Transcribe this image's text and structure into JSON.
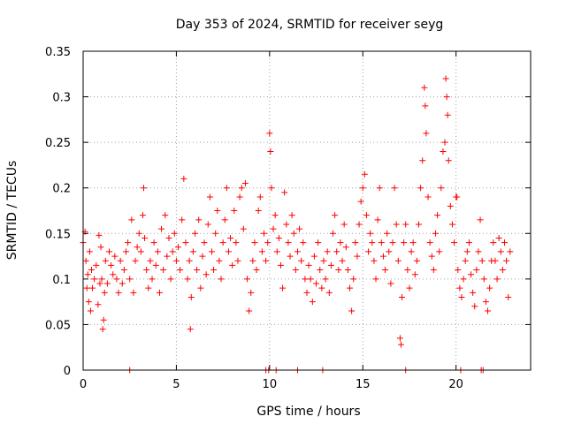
{
  "chart_data": {
    "type": "scatter",
    "title": "Day 353 of 2024, SRMTID for receiver seyg",
    "xlabel": "GPS time / hours",
    "ylabel": "SRMTID / TECUs",
    "xlim": [
      0,
      24
    ],
    "ylim": [
      0,
      0.35
    ],
    "xticks": [
      0,
      5,
      10,
      15,
      20
    ],
    "xtick_labels": [
      "0",
      "5",
      "10",
      "15",
      "20"
    ],
    "yticks": [
      0,
      0.05,
      0.1,
      0.15,
      0.2,
      0.25,
      0.3,
      0.35
    ],
    "ytick_labels": [
      "0",
      "0.05",
      "0.1",
      "0.15",
      "0.2",
      "0.25",
      "0.3",
      "0.35"
    ],
    "grid": true,
    "marker": "+",
    "color": "#ff0000",
    "series": [
      {
        "name": "SRMTID",
        "points": [
          [
            0.0,
            0.14
          ],
          [
            0.1,
            0.152
          ],
          [
            0.15,
            0.12
          ],
          [
            0.2,
            0.09
          ],
          [
            0.25,
            0.105
          ],
          [
            0.3,
            0.075
          ],
          [
            0.35,
            0.13
          ],
          [
            0.4,
            0.065
          ],
          [
            0.45,
            0.11
          ],
          [
            0.5,
            0.09
          ],
          [
            0.6,
            0.1
          ],
          [
            0.7,
            0.115
          ],
          [
            0.8,
            0.072
          ],
          [
            0.85,
            0.148
          ],
          [
            0.9,
            0.095
          ],
          [
            0.95,
            0.135
          ],
          [
            1.0,
            0.1
          ],
          [
            1.05,
            0.045
          ],
          [
            1.1,
            0.055
          ],
          [
            1.15,
            0.085
          ],
          [
            1.2,
            0.12
          ],
          [
            1.3,
            0.095
          ],
          [
            1.4,
            0.13
          ],
          [
            1.5,
            0.115
          ],
          [
            1.6,
            0.105
          ],
          [
            1.7,
            0.125
          ],
          [
            1.8,
            0.1
          ],
          [
            1.9,
            0.085
          ],
          [
            2.0,
            0.12
          ],
          [
            2.1,
            0.095
          ],
          [
            2.2,
            0.11
          ],
          [
            2.3,
            0.13
          ],
          [
            2.4,
            0.14
          ],
          [
            2.5,
            0.1
          ],
          [
            2.6,
            0.165
          ],
          [
            2.7,
            0.085
          ],
          [
            2.8,
            0.12
          ],
          [
            2.9,
            0.135
          ],
          [
            3.0,
            0.15
          ],
          [
            3.1,
            0.13
          ],
          [
            3.2,
            0.17
          ],
          [
            3.25,
            0.2
          ],
          [
            3.3,
            0.145
          ],
          [
            3.4,
            0.11
          ],
          [
            3.5,
            0.09
          ],
          [
            3.6,
            0.12
          ],
          [
            3.7,
            0.1
          ],
          [
            3.8,
            0.14
          ],
          [
            3.9,
            0.115
          ],
          [
            4.0,
            0.13
          ],
          [
            4.1,
            0.085
          ],
          [
            4.2,
            0.155
          ],
          [
            4.3,
            0.11
          ],
          [
            4.4,
            0.17
          ],
          [
            4.5,
            0.125
          ],
          [
            4.6,
            0.145
          ],
          [
            4.7,
            0.1
          ],
          [
            4.8,
            0.13
          ],
          [
            4.9,
            0.15
          ],
          [
            5.0,
            0.12
          ],
          [
            5.1,
            0.135
          ],
          [
            5.2,
            0.11
          ],
          [
            5.3,
            0.165
          ],
          [
            5.4,
            0.21
          ],
          [
            5.5,
            0.14
          ],
          [
            5.6,
            0.1
          ],
          [
            5.7,
            0.12
          ],
          [
            5.75,
            0.045
          ],
          [
            5.8,
            0.08
          ],
          [
            5.9,
            0.13
          ],
          [
            6.0,
            0.15
          ],
          [
            6.1,
            0.11
          ],
          [
            6.2,
            0.165
          ],
          [
            6.3,
            0.09
          ],
          [
            6.4,
            0.125
          ],
          [
            6.5,
            0.14
          ],
          [
            6.6,
            0.105
          ],
          [
            6.7,
            0.16
          ],
          [
            6.8,
            0.19
          ],
          [
            6.9,
            0.13
          ],
          [
            7.0,
            0.11
          ],
          [
            7.1,
            0.15
          ],
          [
            7.2,
            0.175
          ],
          [
            7.3,
            0.12
          ],
          [
            7.4,
            0.1
          ],
          [
            7.5,
            0.14
          ],
          [
            7.6,
            0.165
          ],
          [
            7.7,
            0.2
          ],
          [
            7.8,
            0.13
          ],
          [
            7.9,
            0.145
          ],
          [
            8.0,
            0.115
          ],
          [
            8.1,
            0.175
          ],
          [
            8.2,
            0.14
          ],
          [
            8.3,
            0.12
          ],
          [
            8.4,
            0.19
          ],
          [
            8.5,
            0.2
          ],
          [
            8.6,
            0.155
          ],
          [
            8.7,
            0.205
          ],
          [
            8.8,
            0.1
          ],
          [
            8.9,
            0.065
          ],
          [
            9.0,
            0.085
          ],
          [
            9.1,
            0.12
          ],
          [
            9.2,
            0.14
          ],
          [
            9.3,
            0.11
          ],
          [
            9.4,
            0.175
          ],
          [
            9.5,
            0.19
          ],
          [
            9.6,
            0.13
          ],
          [
            9.7,
            0.15
          ],
          [
            9.8,
            0.12
          ],
          [
            9.9,
            0.14
          ],
          [
            10.0,
            0.26
          ],
          [
            10.05,
            0.24
          ],
          [
            10.1,
            0.2
          ],
          [
            10.2,
            0.155
          ],
          [
            10.3,
            0.17
          ],
          [
            10.4,
            0.13
          ],
          [
            10.5,
            0.145
          ],
          [
            10.6,
            0.115
          ],
          [
            10.7,
            0.09
          ],
          [
            10.8,
            0.195
          ],
          [
            10.9,
            0.16
          ],
          [
            11.0,
            0.14
          ],
          [
            11.1,
            0.125
          ],
          [
            11.2,
            0.17
          ],
          [
            11.3,
            0.15
          ],
          [
            11.4,
            0.11
          ],
          [
            11.5,
            0.13
          ],
          [
            11.6,
            0.155
          ],
          [
            11.7,
            0.12
          ],
          [
            11.8,
            0.14
          ],
          [
            11.9,
            0.1
          ],
          [
            12.0,
            0.085
          ],
          [
            12.1,
            0.115
          ],
          [
            12.2,
            0.1
          ],
          [
            12.3,
            0.075
          ],
          [
            12.4,
            0.125
          ],
          [
            12.5,
            0.095
          ],
          [
            12.6,
            0.14
          ],
          [
            12.7,
            0.11
          ],
          [
            12.8,
            0.09
          ],
          [
            12.9,
            0.12
          ],
          [
            13.0,
            0.1
          ],
          [
            13.1,
            0.13
          ],
          [
            13.2,
            0.085
          ],
          [
            13.3,
            0.115
          ],
          [
            13.4,
            0.15
          ],
          [
            13.5,
            0.17
          ],
          [
            13.6,
            0.13
          ],
          [
            13.7,
            0.11
          ],
          [
            13.8,
            0.14
          ],
          [
            13.9,
            0.12
          ],
          [
            14.0,
            0.16
          ],
          [
            14.1,
            0.135
          ],
          [
            14.2,
            0.11
          ],
          [
            14.3,
            0.09
          ],
          [
            14.4,
            0.065
          ],
          [
            14.5,
            0.1
          ],
          [
            14.6,
            0.14
          ],
          [
            14.7,
            0.125
          ],
          [
            14.8,
            0.16
          ],
          [
            14.9,
            0.185
          ],
          [
            15.0,
            0.2
          ],
          [
            15.1,
            0.215
          ],
          [
            15.2,
            0.17
          ],
          [
            15.3,
            0.13
          ],
          [
            15.4,
            0.15
          ],
          [
            15.5,
            0.14
          ],
          [
            15.6,
            0.12
          ],
          [
            15.7,
            0.1
          ],
          [
            15.8,
            0.165
          ],
          [
            15.9,
            0.2
          ],
          [
            16.0,
            0.14
          ],
          [
            16.1,
            0.125
          ],
          [
            16.2,
            0.11
          ],
          [
            16.3,
            0.15
          ],
          [
            16.4,
            0.13
          ],
          [
            16.5,
            0.095
          ],
          [
            16.6,
            0.14
          ],
          [
            16.7,
            0.2
          ],
          [
            16.8,
            0.16
          ],
          [
            16.9,
            0.12
          ],
          [
            17.0,
            0.035
          ],
          [
            17.05,
            0.028
          ],
          [
            17.1,
            0.08
          ],
          [
            17.2,
            0.14
          ],
          [
            17.3,
            0.16
          ],
          [
            17.4,
            0.11
          ],
          [
            17.5,
            0.09
          ],
          [
            17.6,
            0.13
          ],
          [
            17.7,
            0.14
          ],
          [
            17.8,
            0.105
          ],
          [
            17.9,
            0.12
          ],
          [
            18.0,
            0.16
          ],
          [
            18.1,
            0.2
          ],
          [
            18.2,
            0.23
          ],
          [
            18.3,
            0.31
          ],
          [
            18.35,
            0.29
          ],
          [
            18.4,
            0.26
          ],
          [
            18.5,
            0.19
          ],
          [
            18.6,
            0.14
          ],
          [
            18.7,
            0.125
          ],
          [
            18.8,
            0.11
          ],
          [
            18.9,
            0.15
          ],
          [
            19.0,
            0.17
          ],
          [
            19.1,
            0.13
          ],
          [
            19.2,
            0.2
          ],
          [
            19.3,
            0.24
          ],
          [
            19.4,
            0.25
          ],
          [
            19.45,
            0.32
          ],
          [
            19.5,
            0.3
          ],
          [
            19.55,
            0.28
          ],
          [
            19.6,
            0.23
          ],
          [
            19.7,
            0.18
          ],
          [
            19.8,
            0.16
          ],
          [
            19.9,
            0.14
          ],
          [
            20.0,
            0.19
          ],
          [
            20.05,
            0.19
          ],
          [
            20.1,
            0.11
          ],
          [
            20.2,
            0.09
          ],
          [
            20.3,
            0.08
          ],
          [
            20.4,
            0.1
          ],
          [
            20.5,
            0.12
          ],
          [
            20.6,
            0.13
          ],
          [
            20.7,
            0.14
          ],
          [
            20.8,
            0.105
          ],
          [
            20.9,
            0.085
          ],
          [
            21.0,
            0.07
          ],
          [
            21.1,
            0.11
          ],
          [
            21.2,
            0.13
          ],
          [
            21.3,
            0.165
          ],
          [
            21.4,
            0.12
          ],
          [
            21.5,
            0.1
          ],
          [
            21.6,
            0.075
          ],
          [
            21.7,
            0.065
          ],
          [
            21.8,
            0.09
          ],
          [
            21.9,
            0.12
          ],
          [
            22.0,
            0.14
          ],
          [
            22.1,
            0.12
          ],
          [
            22.2,
            0.1
          ],
          [
            22.3,
            0.145
          ],
          [
            22.4,
            0.13
          ],
          [
            22.5,
            0.11
          ],
          [
            22.6,
            0.14
          ],
          [
            22.7,
            0.12
          ],
          [
            22.8,
            0.08
          ],
          [
            22.9,
            0.13
          ],
          [
            2.5,
            0.0
          ],
          [
            9.8,
            0.0
          ],
          [
            9.95,
            0.0
          ],
          [
            10.35,
            0.0
          ],
          [
            11.5,
            0.0
          ],
          [
            12.85,
            0.0
          ],
          [
            17.3,
            0.0
          ],
          [
            20.25,
            0.0
          ],
          [
            21.35,
            0.0
          ],
          [
            21.45,
            0.0
          ]
        ]
      }
    ]
  }
}
